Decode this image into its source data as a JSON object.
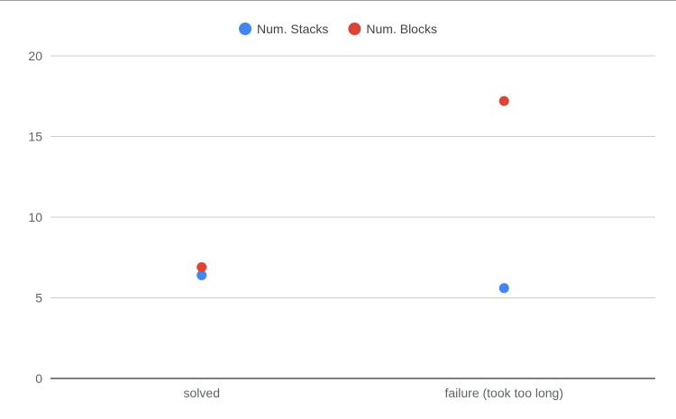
{
  "chart_data": {
    "type": "scatter",
    "categories": [
      "solved",
      "failure (took too long)"
    ],
    "series": [
      {
        "name": "Num. Stacks",
        "color": "#4285f4",
        "values": [
          6.4,
          5.6
        ]
      },
      {
        "name": "Num. Blocks",
        "color": "#db4437",
        "values": [
          6.9,
          17.2
        ]
      }
    ],
    "yticks": [
      0,
      5,
      10,
      15,
      20
    ],
    "ylim": [
      0,
      20
    ],
    "grid": true,
    "legend_position": "top-center",
    "title": "",
    "xlabel": "",
    "ylabel": ""
  }
}
